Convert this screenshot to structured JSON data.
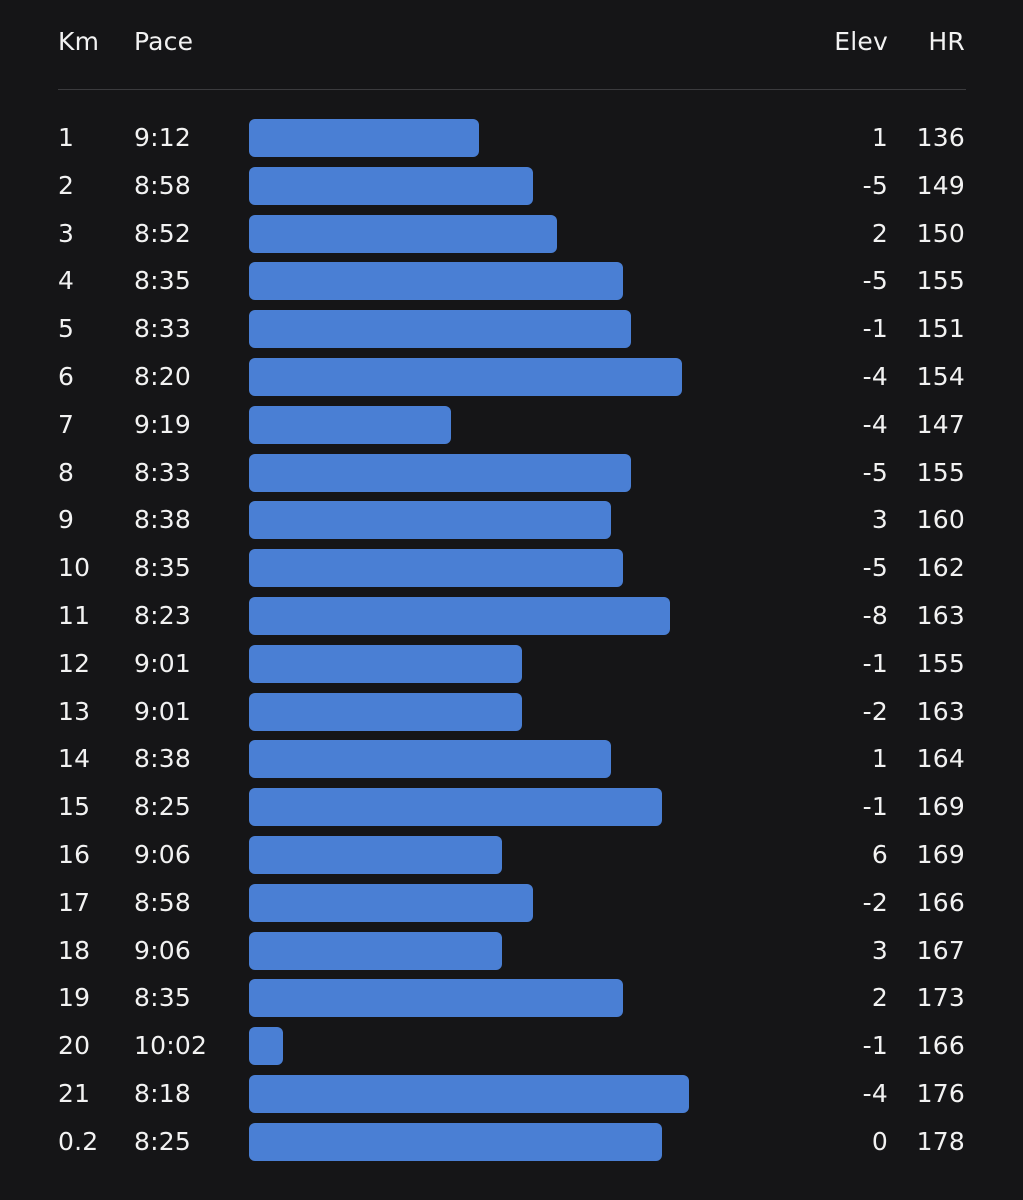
{
  "headers": {
    "km": "Km",
    "pace": "Pace",
    "elev": "Elev",
    "hr": "HR"
  },
  "colors": {
    "background": "#151517",
    "bar": "#4a7fd4",
    "text": "#f2f2f2",
    "divider": "#3b3b3e"
  },
  "rows": [
    {
      "km": "1",
      "pace": "9:12",
      "elev": "1",
      "hr": "136"
    },
    {
      "km": "2",
      "pace": "8:58",
      "elev": "-5",
      "hr": "149"
    },
    {
      "km": "3",
      "pace": "8:52",
      "elev": "2",
      "hr": "150"
    },
    {
      "km": "4",
      "pace": "8:35",
      "elev": "-5",
      "hr": "155"
    },
    {
      "km": "5",
      "pace": "8:33",
      "elev": "-1",
      "hr": "151"
    },
    {
      "km": "6",
      "pace": "8:20",
      "elev": "-4",
      "hr": "154"
    },
    {
      "km": "7",
      "pace": "9:19",
      "elev": "-4",
      "hr": "147"
    },
    {
      "km": "8",
      "pace": "8:33",
      "elev": "-5",
      "hr": "155"
    },
    {
      "km": "9",
      "pace": "8:38",
      "elev": "3",
      "hr": "160"
    },
    {
      "km": "10",
      "pace": "8:35",
      "elev": "-5",
      "hr": "162"
    },
    {
      "km": "11",
      "pace": "8:23",
      "elev": "-8",
      "hr": "163"
    },
    {
      "km": "12",
      "pace": "9:01",
      "elev": "-1",
      "hr": "155"
    },
    {
      "km": "13",
      "pace": "9:01",
      "elev": "-2",
      "hr": "163"
    },
    {
      "km": "14",
      "pace": "8:38",
      "elev": "1",
      "hr": "164"
    },
    {
      "km": "15",
      "pace": "8:25",
      "elev": "-1",
      "hr": "169"
    },
    {
      "km": "16",
      "pace": "9:06",
      "elev": "6",
      "hr": "169"
    },
    {
      "km": "17",
      "pace": "8:58",
      "elev": "-2",
      "hr": "166"
    },
    {
      "km": "18",
      "pace": "9:06",
      "elev": "3",
      "hr": "167"
    },
    {
      "km": "19",
      "pace": "8:35",
      "elev": "2",
      "hr": "173"
    },
    {
      "km": "20",
      "pace": "10:02",
      "elev": "-1",
      "hr": "166"
    },
    {
      "km": "21",
      "pace": "8:18",
      "elev": "-4",
      "hr": "176"
    },
    {
      "km": "0.2",
      "pace": "8:25",
      "elev": "0",
      "hr": "178"
    }
  ]
}
